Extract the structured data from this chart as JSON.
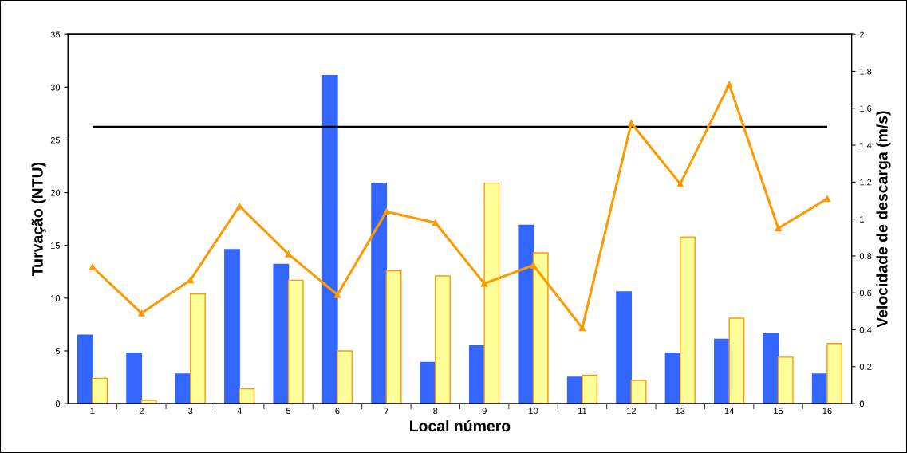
{
  "chart_data": {
    "type": "bar",
    "xlabel": "Local número",
    "ylabel": "Turvação (NTU)",
    "y2label": "Velocidade de descarga (m/s)",
    "categories": [
      "1",
      "2",
      "3",
      "4",
      "5",
      "6",
      "7",
      "8",
      "9",
      "10",
      "11",
      "12",
      "13",
      "14",
      "15",
      "16"
    ],
    "series": [
      {
        "color": "#3366ff",
        "values": [
          6.5,
          4.8,
          2.8,
          14.6,
          13.2,
          31.1,
          20.9,
          3.9,
          5.5,
          16.9,
          2.5,
          10.6,
          4.8,
          6.1,
          6.6,
          2.8
        ]
      },
      {
        "color": "#ffff99",
        "values": [
          2.4,
          0.3,
          10.4,
          1.4,
          11.7,
          5.0,
          12.6,
          12.1,
          20.9,
          14.3,
          2.7,
          2.2,
          15.8,
          8.1,
          4.4,
          5.7
        ]
      },
      {
        "type": "line",
        "axis": "y2",
        "color": "#ff9900",
        "marker": "triangle",
        "values": [
          0.74,
          0.49,
          0.67,
          1.07,
          0.81,
          0.59,
          1.04,
          0.98,
          0.65,
          0.75,
          0.41,
          1.52,
          1.19,
          1.73,
          0.95,
          1.11
        ]
      }
    ],
    "ylim": [
      0,
      35
    ],
    "yticks": [
      0,
      5,
      10,
      15,
      20,
      25,
      30,
      35
    ],
    "y2lim": [
      0,
      2
    ],
    "y2ticks": [
      0,
      0.2,
      0.4,
      0.6,
      0.8,
      1,
      1.2,
      1.4,
      1.6,
      1.8,
      2
    ],
    "ref_lines": [
      {
        "axis": "y2",
        "value": 1.5,
        "color": "#000000"
      }
    ],
    "grid": false,
    "legend": false
  }
}
